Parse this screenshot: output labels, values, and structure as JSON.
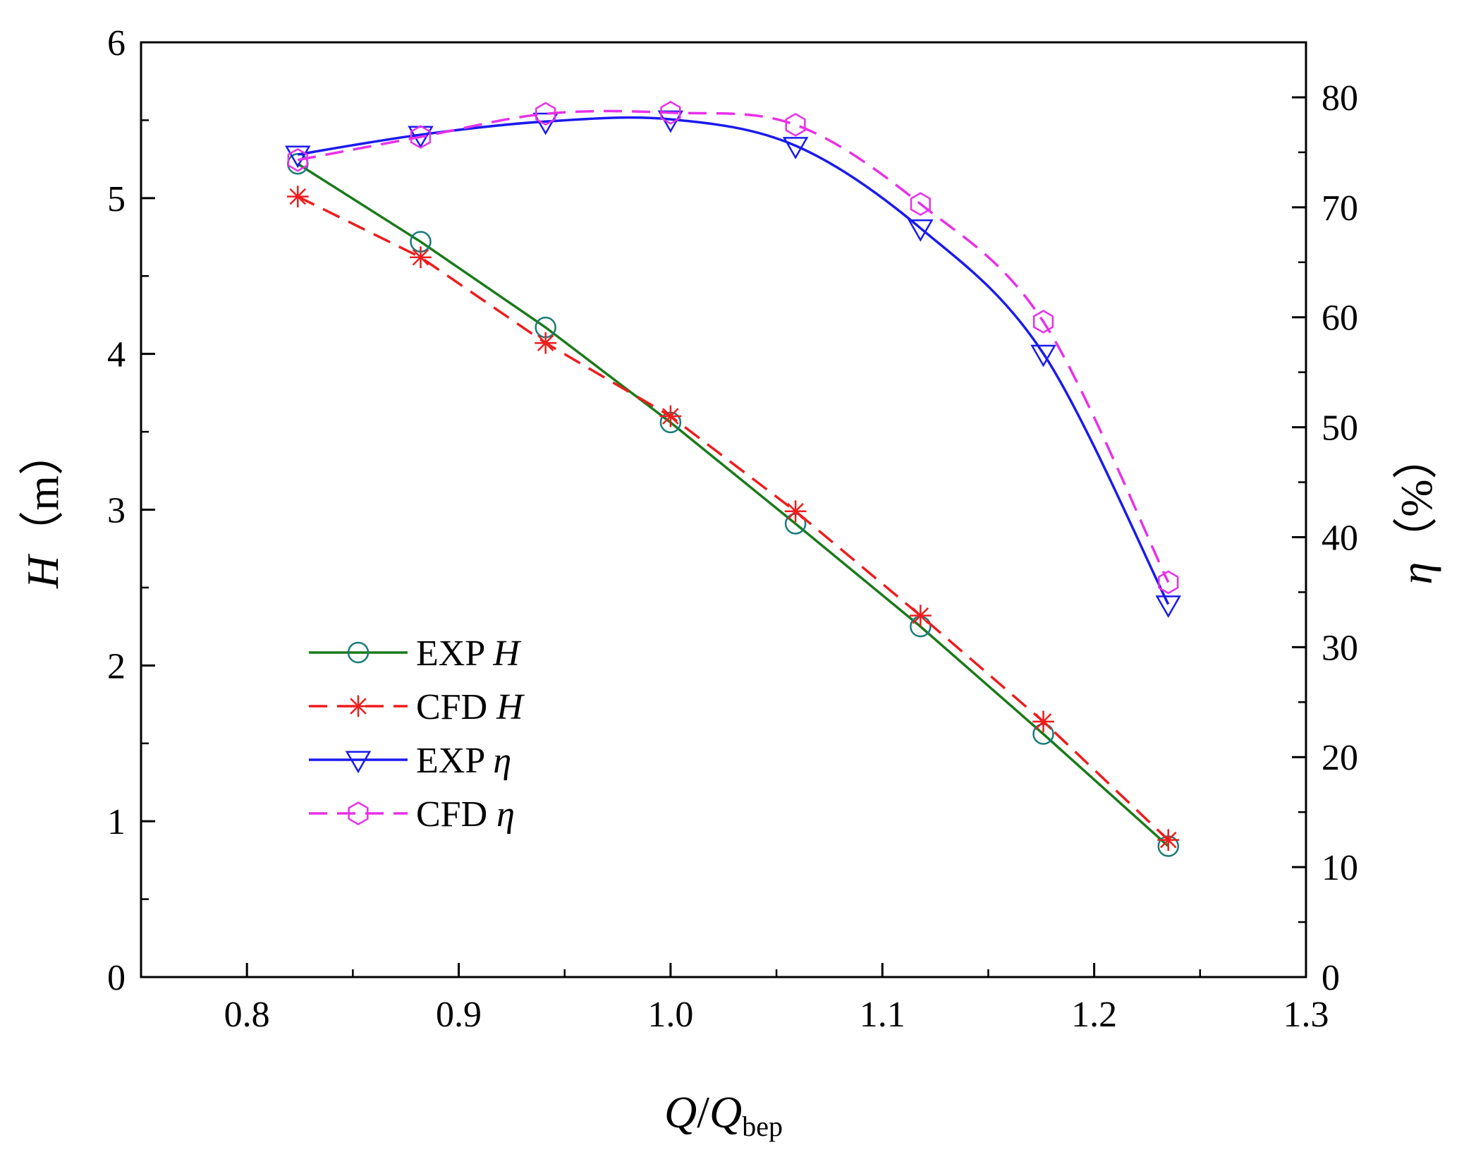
{
  "chart_data": {
    "type": "line",
    "x_axis": {
      "label_main": "Q",
      "label_sep": "/",
      "label_sub_base": "Q",
      "label_subscript": "bep",
      "range": [
        0.75,
        1.3
      ],
      "ticks": [
        0.8,
        0.9,
        1.0,
        1.1,
        1.2,
        1.3
      ],
      "tick_labels": [
        "0.8",
        "0.9",
        "1.0",
        "1.1",
        "1.2",
        "1.3"
      ]
    },
    "y_left": {
      "symbol": "H",
      "unit": "（m）",
      "range": [
        0,
        6
      ],
      "ticks": [
        0,
        1,
        2,
        3,
        4,
        5,
        6
      ],
      "tick_labels": [
        "0",
        "1",
        "2",
        "3",
        "4",
        "5",
        "6"
      ]
    },
    "y_right": {
      "symbol": "η",
      "unit": "（%）",
      "range": [
        0,
        85
      ],
      "ticks": [
        0,
        10,
        20,
        30,
        40,
        50,
        60,
        70,
        80
      ],
      "tick_labels": [
        "0",
        "10",
        "20",
        "30",
        "40",
        "50",
        "60",
        "70",
        "80"
      ]
    },
    "x": [
      0.824,
      0.882,
      0.941,
      1.0,
      1.059,
      1.118,
      1.176,
      1.235
    ],
    "series": [
      {
        "id": "exp-h",
        "name_prefix": "EXP ",
        "name_symbol": "H",
        "axis": "left",
        "color": "#1a7a1a",
        "marker_color": "#1a7a7a",
        "dash": "solid",
        "marker": "circle",
        "values": [
          5.22,
          4.72,
          4.17,
          3.56,
          2.91,
          2.25,
          1.56,
          0.84
        ]
      },
      {
        "id": "cfd-h",
        "name_prefix": "CFD ",
        "name_symbol": "H",
        "axis": "left",
        "color": "#ee1c1c",
        "marker_color": "#ee1c1c",
        "dash": "dashed",
        "marker": "asterisk",
        "values": [
          5.01,
          4.62,
          4.07,
          3.6,
          2.99,
          2.32,
          1.64,
          0.88
        ]
      },
      {
        "id": "exp-eta",
        "name_prefix": "EXP ",
        "name_symbol": "η",
        "axis": "right",
        "color": "#1a1aee",
        "marker_color": "#1a1aee",
        "dash": "solid",
        "marker": "triangle-down",
        "values": [
          74.8,
          76.6,
          77.8,
          78.0,
          75.6,
          68.1,
          56.7,
          33.9
        ]
      },
      {
        "id": "cfd-eta",
        "name_prefix": "CFD ",
        "name_symbol": "η",
        "axis": "right",
        "color": "#e830e8",
        "marker_color": "#e830e8",
        "dash": "dashed",
        "marker": "hexagon",
        "values": [
          74.3,
          76.4,
          78.5,
          78.6,
          77.5,
          70.3,
          59.6,
          35.9
        ]
      }
    ],
    "legend_position": "lower-left"
  }
}
